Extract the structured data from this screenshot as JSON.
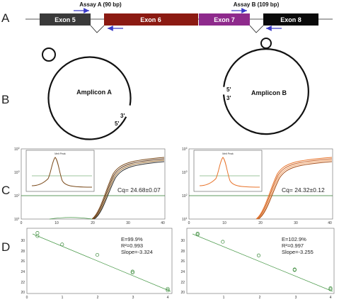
{
  "panels": {
    "a": "A",
    "b": "B",
    "c": "C",
    "d": "D"
  },
  "exons": [
    {
      "label": "Exon  5",
      "color": "#3a3a3a"
    },
    {
      "label": "Exon 6",
      "color": "#8b1a12"
    },
    {
      "label": "Exon 7",
      "color": "#8e2a8c"
    },
    {
      "label": "Exon 8",
      "color": "#0a0a0a"
    }
  ],
  "assays": {
    "a": "Assay A (90 bp)",
    "b": "Assay B (109 bp)"
  },
  "amplicons": {
    "a": {
      "label": "Amplicon A",
      "five": "5'",
      "three": "3'"
    },
    "b": {
      "label": "Amplicon B",
      "five": "5'",
      "three": "3'"
    }
  },
  "amp_left": {
    "cq": "Cq= 24.68±0.07",
    "yticks": [
      "10",
      "10",
      "10",
      "10"
    ],
    "yexp": [
      "4",
      "3",
      "2",
      "1"
    ],
    "xticks": [
      "0",
      "10",
      "20",
      "30",
      "40"
    ],
    "inset_title": "Melt Peak"
  },
  "amp_right": {
    "cq": "Cq= 24.32±0.12",
    "yticks": [
      "10",
      "10",
      "10",
      "10"
    ],
    "yexp": [
      "4",
      "3",
      "2",
      "1"
    ],
    "xticks": [
      "0",
      "10",
      "20",
      "30",
      "40"
    ],
    "inset_title": "Melt Peak"
  },
  "std_left": {
    "e": "E=99.9%",
    "r2": "R²=0.993",
    "slope": "Slope=-3.324",
    "yticks": [
      "30",
      "28",
      "26",
      "24",
      "22",
      "20"
    ],
    "xticks": [
      "0",
      "1",
      "2",
      "3",
      "4"
    ]
  },
  "std_right": {
    "e": "E=102.9%",
    "r2": "R²=0.997",
    "slope": "Slope=-3.255",
    "yticks": [
      "30",
      "28",
      "26",
      "24",
      "22",
      "20"
    ],
    "xticks": [
      "1",
      "2",
      "3",
      "4"
    ]
  },
  "chart_data": [
    {
      "type": "scatter",
      "title": "",
      "xlabel": "",
      "ylabel": "",
      "xlim": [
        0,
        4
      ],
      "ylim": [
        19,
        31.5
      ],
      "x": [
        0.3,
        0.3,
        1.0,
        2.0,
        3.0,
        3.0,
        4.0,
        4.0
      ],
      "y": [
        30.6,
        30.0,
        28.4,
        26.4,
        23.2,
        23.0,
        19.9,
        19.6
      ]
    },
    {
      "type": "scatter",
      "title": "",
      "xlabel": "",
      "ylabel": "",
      "xlim": [
        0,
        4
      ],
      "ylim": [
        19,
        31.5
      ],
      "x": [
        0.3,
        0.3,
        1.0,
        2.0,
        3.0,
        3.0,
        4.0,
        4.0
      ],
      "y": [
        30.5,
        30.3,
        28.9,
        26.3,
        23.6,
        23.5,
        20.0,
        19.8
      ]
    }
  ]
}
